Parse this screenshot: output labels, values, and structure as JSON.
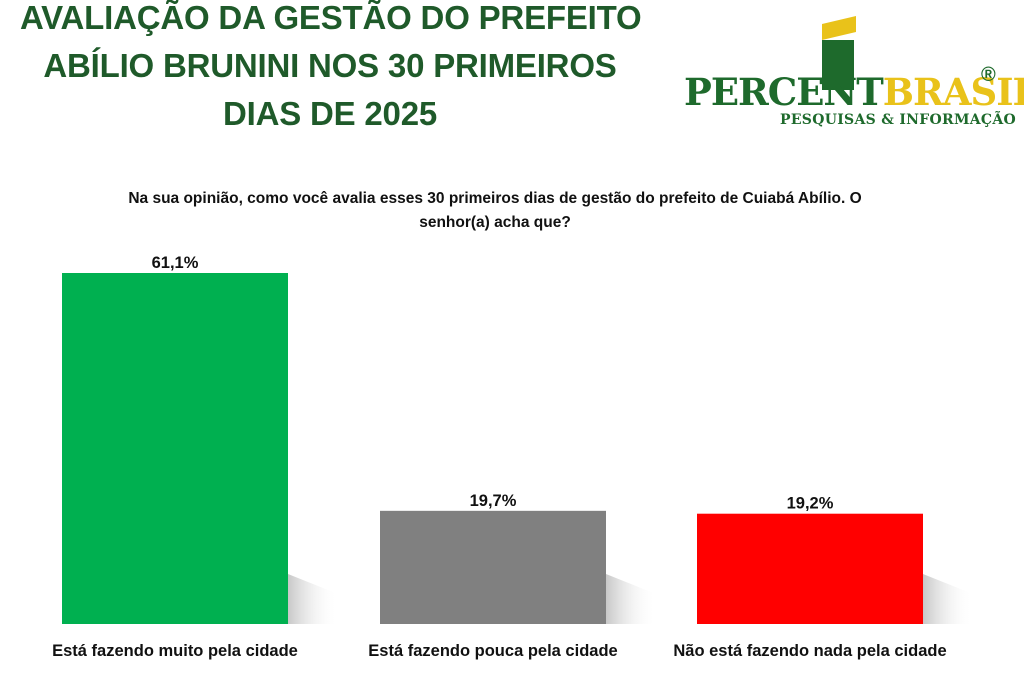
{
  "header": {
    "title_lines": [
      "AVALIAÇÃO DA GESTÃO DO PREFEITO",
      "ABÍLIO BRUNINI NOS 30 PRIMEIROS",
      "DIAS DE 2025"
    ]
  },
  "logo": {
    "word_part1": "PERCENT",
    "word_part2": "BRASIL",
    "registered": "®",
    "tagline": "PESQUISAS & INFORMAÇÃO",
    "colors": {
      "green": "#1e6a2c",
      "yellow": "#e9c21a"
    }
  },
  "question": "Na sua opinião, como você avalia esses 30 primeiros dias de gestão do prefeito de Cuiabá Abílio. O senhor(a) acha que?",
  "chart_data": {
    "type": "bar",
    "categories": [
      "Está fazendo muito pela cidade",
      "Está fazendo pouca pela cidade",
      "Não está fazendo nada pela cidade"
    ],
    "values": [
      61.1,
      19.7,
      19.2
    ],
    "value_labels": [
      "61,1%",
      "19,7%",
      "19,2%"
    ],
    "colors": [
      "#00b050",
      "#808080",
      "#ff0000"
    ],
    "ylim": [
      0,
      61.1
    ],
    "grid": false
  }
}
